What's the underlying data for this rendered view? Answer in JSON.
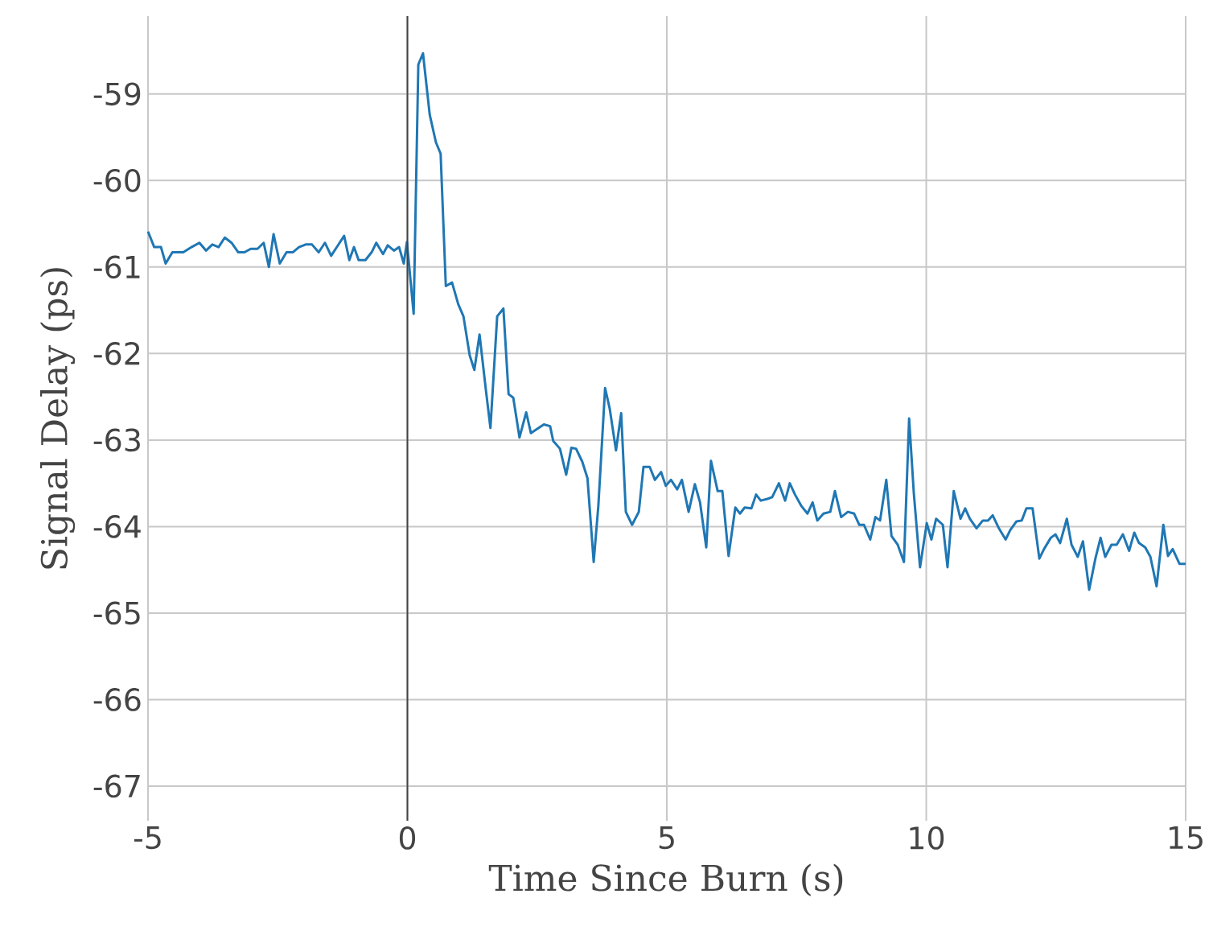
{
  "chart_data": {
    "type": "line",
    "xlabel": "Time Since Burn (s)",
    "ylabel": "Signal Delay (ps)",
    "xlim": [
      -5,
      15
    ],
    "ylim": [
      -67.4,
      -58.1
    ],
    "xticks": [
      -5,
      0,
      5,
      10,
      15
    ],
    "yticks": [
      -67,
      -66,
      -65,
      -64,
      -63,
      -62,
      -61,
      -60,
      -59
    ],
    "grid": true,
    "marker": "none",
    "line_style": "solid",
    "ref_lines": [
      {
        "axis": "x",
        "value": 0,
        "color": "#444444"
      }
    ],
    "series": [
      {
        "color": "#1f77b4",
        "x": [
          -5.0,
          -4.88,
          -4.75,
          -4.66,
          -4.53,
          -4.32,
          -4.16,
          -4.01,
          -3.88,
          -3.76,
          -3.64,
          -3.52,
          -3.39,
          -3.26,
          -3.14,
          -3.02,
          -2.89,
          -2.77,
          -2.67,
          -2.58,
          -2.46,
          -2.33,
          -2.21,
          -2.09,
          -1.96,
          -1.84,
          -1.71,
          -1.59,
          -1.47,
          -1.34,
          -1.22,
          -1.12,
          -1.03,
          -0.94,
          -0.81,
          -0.69,
          -0.6,
          -0.47,
          -0.38,
          -0.26,
          -0.16,
          -0.07,
          -0.01,
          0.12,
          0.21,
          0.3,
          0.43,
          0.55,
          0.64,
          0.74,
          0.86,
          0.98,
          1.08,
          1.2,
          1.29,
          1.39,
          1.51,
          1.6,
          1.73,
          1.85,
          1.95,
          2.04,
          2.16,
          2.29,
          2.38,
          2.53,
          2.63,
          2.75,
          2.81,
          2.94,
          3.06,
          3.16,
          3.25,
          3.37,
          3.47,
          3.59,
          3.68,
          3.81,
          3.9,
          4.02,
          4.12,
          4.21,
          4.33,
          4.46,
          4.55,
          4.67,
          4.77,
          4.89,
          4.98,
          5.08,
          5.2,
          5.29,
          5.42,
          5.54,
          5.64,
          5.76,
          5.85,
          5.98,
          6.07,
          6.19,
          6.32,
          6.41,
          6.5,
          6.63,
          6.72,
          6.81,
          6.94,
          7.03,
          7.16,
          7.28,
          7.37,
          7.47,
          7.59,
          7.71,
          7.81,
          7.9,
          8.02,
          8.15,
          8.24,
          8.36,
          8.49,
          8.61,
          8.71,
          8.8,
          8.92,
          9.02,
          9.11,
          9.23,
          9.33,
          9.45,
          9.57,
          9.67,
          9.76,
          9.88,
          10.01,
          10.1,
          10.19,
          10.32,
          10.41,
          10.53,
          10.66,
          10.75,
          10.84,
          10.97,
          11.09,
          11.19,
          11.28,
          11.4,
          11.53,
          11.62,
          11.74,
          11.84,
          11.93,
          12.05,
          12.18,
          12.27,
          12.4,
          12.49,
          12.58,
          12.71,
          12.8,
          12.92,
          13.02,
          13.14,
          13.26,
          13.36,
          13.45,
          13.57,
          13.67,
          13.79,
          13.91,
          14.01,
          14.1,
          14.22,
          14.32,
          14.44,
          14.57,
          14.66,
          14.75,
          14.88,
          15.0
        ],
        "values": [
          -60.59,
          -60.77,
          -60.77,
          -60.96,
          -60.83,
          -60.83,
          -60.77,
          -60.72,
          -60.81,
          -60.74,
          -60.77,
          -60.66,
          -60.72,
          -60.83,
          -60.83,
          -60.79,
          -60.79,
          -60.72,
          -61.0,
          -60.62,
          -60.96,
          -60.83,
          -60.83,
          -60.77,
          -60.74,
          -60.74,
          -60.83,
          -60.72,
          -60.87,
          -60.75,
          -60.64,
          -60.92,
          -60.77,
          -60.92,
          -60.92,
          -60.83,
          -60.72,
          -60.85,
          -60.75,
          -60.81,
          -60.77,
          -60.96,
          -60.71,
          -61.54,
          -58.66,
          -58.53,
          -59.24,
          -59.56,
          -59.69,
          -61.22,
          -61.18,
          -61.43,
          -61.57,
          -62.02,
          -62.19,
          -61.78,
          -62.41,
          -62.86,
          -61.57,
          -61.48,
          -62.47,
          -62.51,
          -62.97,
          -62.68,
          -62.92,
          -62.86,
          -62.82,
          -62.84,
          -63.01,
          -63.1,
          -63.4,
          -63.09,
          -63.1,
          -63.25,
          -63.44,
          -64.41,
          -63.76,
          -62.4,
          -62.64,
          -63.12,
          -62.69,
          -63.83,
          -63.98,
          -63.83,
          -63.31,
          -63.31,
          -63.46,
          -63.37,
          -63.53,
          -63.46,
          -63.57,
          -63.46,
          -63.83,
          -63.51,
          -63.72,
          -64.24,
          -63.24,
          -63.59,
          -63.59,
          -64.34,
          -63.78,
          -63.85,
          -63.78,
          -63.79,
          -63.63,
          -63.7,
          -63.68,
          -63.66,
          -63.5,
          -63.7,
          -63.5,
          -63.63,
          -63.76,
          -63.85,
          -63.72,
          -63.93,
          -63.85,
          -63.83,
          -63.59,
          -63.89,
          -63.83,
          -63.85,
          -63.98,
          -63.98,
          -64.15,
          -63.89,
          -63.93,
          -63.46,
          -64.11,
          -64.21,
          -64.41,
          -62.75,
          -63.61,
          -64.47,
          -63.96,
          -64.15,
          -63.91,
          -63.98,
          -64.47,
          -63.59,
          -63.91,
          -63.79,
          -63.91,
          -64.02,
          -63.93,
          -63.93,
          -63.87,
          -64.02,
          -64.15,
          -64.04,
          -63.94,
          -63.93,
          -63.79,
          -63.79,
          -64.37,
          -64.26,
          -64.13,
          -64.09,
          -64.19,
          -63.91,
          -64.21,
          -64.35,
          -64.17,
          -64.73,
          -64.37,
          -64.13,
          -64.35,
          -64.21,
          -64.21,
          -64.09,
          -64.28,
          -64.07,
          -64.19,
          -64.24,
          -64.35,
          -64.69,
          -63.98,
          -64.34,
          -64.26,
          -64.43,
          -64.43
        ]
      }
    ]
  }
}
